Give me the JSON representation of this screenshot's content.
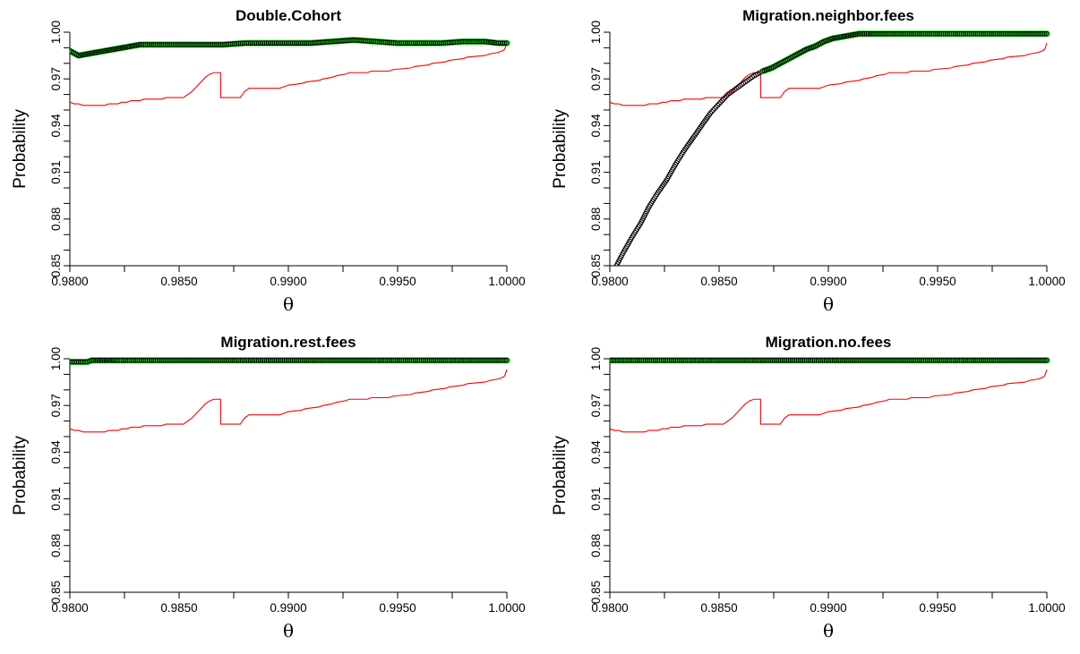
{
  "chart_data": [
    {
      "type": "line",
      "title": "Double.Cohort",
      "xlabel": "θ",
      "ylabel": "Probability",
      "xlim": [
        0.98,
        1.0
      ],
      "ylim": [
        0.85,
        1.0
      ],
      "xticks": [
        "0.9800",
        "0.9850",
        "0.9900",
        "0.9950",
        "1.0000"
      ],
      "yticks": [
        "0.85",
        "0.88",
        "0.91",
        "0.94",
        "0.97",
        "1.00"
      ],
      "series": [
        {
          "style": "red-line",
          "color": "#ff0000",
          "x": [
            0.98,
            0.9802,
            0.9804,
            0.9806,
            0.9816,
            0.9818,
            0.9822,
            0.9824,
            0.9826,
            0.9828,
            0.9832,
            0.9834,
            0.9842,
            0.9844,
            0.9852,
            0.9854,
            0.9856,
            0.9858,
            0.986,
            0.9862,
            0.9864,
            0.9866,
            0.9869,
            0.9869,
            0.9871,
            0.9871,
            0.9878,
            0.988,
            0.9882,
            0.9896,
            0.9898,
            0.99,
            0.9906,
            0.9908,
            0.9914,
            0.9916,
            0.992,
            0.9922,
            0.9926,
            0.9928,
            0.9936,
            0.9938,
            0.9946,
            0.9948,
            0.9956,
            0.9958,
            0.9964,
            0.9966,
            0.9972,
            0.9974,
            0.998,
            0.9982,
            0.999,
            0.9992,
            0.9996,
            0.9998,
            0.9999,
            1.0
          ],
          "y": [
            0.955,
            0.954,
            0.954,
            0.953,
            0.953,
            0.954,
            0.954,
            0.955,
            0.955,
            0.956,
            0.956,
            0.957,
            0.957,
            0.958,
            0.958,
            0.96,
            0.962,
            0.965,
            0.968,
            0.971,
            0.973,
            0.974,
            0.974,
            0.958,
            0.958,
            0.958,
            0.958,
            0.962,
            0.964,
            0.964,
            0.965,
            0.966,
            0.967,
            0.968,
            0.969,
            0.97,
            0.971,
            0.972,
            0.973,
            0.974,
            0.974,
            0.975,
            0.975,
            0.976,
            0.977,
            0.978,
            0.979,
            0.98,
            0.981,
            0.982,
            0.983,
            0.984,
            0.985,
            0.986,
            0.987,
            0.988,
            0.989,
            0.993
          ]
        },
        {
          "style": "black-circles-green-fill",
          "color": "#000000",
          "highlight": "#22dd22",
          "x": [
            0.98,
            0.9804,
            0.9808,
            0.9812,
            0.9816,
            0.982,
            0.9824,
            0.9828,
            0.9832,
            0.984,
            0.985,
            0.986,
            0.987,
            0.988,
            0.989,
            0.99,
            0.991,
            0.992,
            0.993,
            0.994,
            0.995,
            0.996,
            0.997,
            0.998,
            0.999,
            0.9996,
            1.0
          ],
          "y": [
            0.988,
            0.985,
            0.986,
            0.987,
            0.988,
            0.989,
            0.99,
            0.991,
            0.992,
            0.992,
            0.992,
            0.992,
            0.992,
            0.993,
            0.993,
            0.993,
            0.993,
            0.994,
            0.995,
            0.994,
            0.993,
            0.993,
            0.993,
            0.994,
            0.994,
            0.993,
            0.993
          ]
        }
      ]
    },
    {
      "type": "line",
      "title": "Migration.neighbor.fees",
      "xlabel": "θ",
      "ylabel": "Probability",
      "xlim": [
        0.98,
        1.0
      ],
      "ylim": [
        0.85,
        1.0
      ],
      "xticks": [
        "0.9800",
        "0.9850",
        "0.9900",
        "0.9950",
        "1.0000"
      ],
      "yticks": [
        "0.85",
        "0.88",
        "0.91",
        "0.94",
        "0.97",
        "1.00"
      ],
      "series": [
        {
          "style": "red-line",
          "color": "#ff0000",
          "x": [
            0.98,
            0.9802,
            0.9804,
            0.9806,
            0.9816,
            0.9818,
            0.9822,
            0.9824,
            0.9826,
            0.9828,
            0.9832,
            0.9834,
            0.9842,
            0.9844,
            0.9852,
            0.9854,
            0.9856,
            0.9858,
            0.986,
            0.9862,
            0.9864,
            0.9866,
            0.9869,
            0.9869,
            0.9871,
            0.9871,
            0.9878,
            0.988,
            0.9882,
            0.9896,
            0.9898,
            0.99,
            0.9906,
            0.9908,
            0.9914,
            0.9916,
            0.992,
            0.9922,
            0.9926,
            0.9928,
            0.9936,
            0.9938,
            0.9946,
            0.9948,
            0.9956,
            0.9958,
            0.9964,
            0.9966,
            0.9972,
            0.9974,
            0.998,
            0.9982,
            0.999,
            0.9992,
            0.9996,
            0.9998,
            0.9999,
            1.0
          ],
          "y": [
            0.955,
            0.954,
            0.954,
            0.953,
            0.953,
            0.954,
            0.954,
            0.955,
            0.955,
            0.956,
            0.956,
            0.957,
            0.957,
            0.958,
            0.958,
            0.96,
            0.962,
            0.965,
            0.968,
            0.971,
            0.973,
            0.974,
            0.974,
            0.958,
            0.958,
            0.958,
            0.958,
            0.962,
            0.964,
            0.964,
            0.965,
            0.966,
            0.967,
            0.968,
            0.969,
            0.97,
            0.971,
            0.972,
            0.973,
            0.974,
            0.974,
            0.975,
            0.975,
            0.976,
            0.977,
            0.978,
            0.979,
            0.98,
            0.981,
            0.982,
            0.983,
            0.984,
            0.985,
            0.986,
            0.987,
            0.988,
            0.989,
            0.993
          ]
        },
        {
          "style": "black-circles",
          "color": "#000000",
          "x": [
            0.9803,
            0.9806,
            0.981,
            0.9814,
            0.9818,
            0.9822,
            0.9826,
            0.983,
            0.9834,
            0.9838,
            0.9842,
            0.9846,
            0.985,
            0.9854,
            0.9858,
            0.9862,
            0.9866,
            0.987
          ],
          "y": [
            0.85,
            0.858,
            0.868,
            0.877,
            0.888,
            0.897,
            0.905,
            0.915,
            0.924,
            0.932,
            0.94,
            0.948,
            0.954,
            0.96,
            0.964,
            0.968,
            0.972,
            0.975
          ]
        },
        {
          "style": "black-circles-green-fill",
          "color": "#000000",
          "highlight": "#22dd22",
          "x": [
            0.987,
            0.9874,
            0.9878,
            0.9882,
            0.9886,
            0.989,
            0.9894,
            0.9898,
            0.9902,
            0.9906,
            0.991,
            0.9914,
            0.992,
            0.993,
            0.994,
            0.995,
            0.996,
            0.997,
            0.998,
            0.999,
            1.0
          ],
          "y": [
            0.975,
            0.977,
            0.98,
            0.983,
            0.986,
            0.989,
            0.991,
            0.994,
            0.996,
            0.997,
            0.998,
            0.999,
            0.999,
            0.999,
            0.999,
            0.999,
            0.999,
            0.999,
            0.999,
            0.999,
            0.999
          ]
        }
      ]
    },
    {
      "type": "line",
      "title": "Migration.rest.fees",
      "xlabel": "θ",
      "ylabel": "Probability",
      "xlim": [
        0.98,
        1.0
      ],
      "ylim": [
        0.85,
        1.0
      ],
      "xticks": [
        "0.9800",
        "0.9850",
        "0.9900",
        "0.9950",
        "1.0000"
      ],
      "yticks": [
        "0.85",
        "0.88",
        "0.91",
        "0.94",
        "0.97",
        "1.00"
      ],
      "series": [
        {
          "style": "red-line",
          "color": "#ff0000",
          "x": [
            0.98,
            0.9802,
            0.9804,
            0.9806,
            0.9816,
            0.9818,
            0.9822,
            0.9824,
            0.9826,
            0.9828,
            0.9832,
            0.9834,
            0.9842,
            0.9844,
            0.9852,
            0.9854,
            0.9856,
            0.9858,
            0.986,
            0.9862,
            0.9864,
            0.9866,
            0.9869,
            0.9869,
            0.9871,
            0.9871,
            0.9878,
            0.988,
            0.9882,
            0.9896,
            0.9898,
            0.99,
            0.9906,
            0.9908,
            0.9914,
            0.9916,
            0.992,
            0.9922,
            0.9926,
            0.9928,
            0.9936,
            0.9938,
            0.9946,
            0.9948,
            0.9956,
            0.9958,
            0.9964,
            0.9966,
            0.9972,
            0.9974,
            0.998,
            0.9982,
            0.999,
            0.9992,
            0.9996,
            0.9998,
            0.9999,
            1.0
          ],
          "y": [
            0.955,
            0.954,
            0.954,
            0.953,
            0.953,
            0.954,
            0.954,
            0.955,
            0.955,
            0.956,
            0.956,
            0.957,
            0.957,
            0.958,
            0.958,
            0.96,
            0.962,
            0.965,
            0.968,
            0.971,
            0.973,
            0.974,
            0.974,
            0.958,
            0.958,
            0.958,
            0.958,
            0.962,
            0.964,
            0.964,
            0.965,
            0.966,
            0.967,
            0.968,
            0.969,
            0.97,
            0.971,
            0.972,
            0.973,
            0.974,
            0.974,
            0.975,
            0.975,
            0.976,
            0.977,
            0.978,
            0.979,
            0.98,
            0.981,
            0.982,
            0.983,
            0.984,
            0.985,
            0.986,
            0.987,
            0.988,
            0.989,
            0.993
          ]
        },
        {
          "style": "black-circles-green-fill",
          "color": "#000000",
          "highlight": "#22dd22",
          "x": [
            0.98,
            0.9804,
            0.9808,
            0.981,
            0.9815,
            0.982,
            0.983,
            0.984,
            0.985,
            0.986,
            0.987,
            0.988,
            0.989,
            0.99,
            0.991,
            0.992,
            0.993,
            0.994,
            0.995,
            0.996,
            0.997,
            0.998,
            0.999,
            1.0
          ],
          "y": [
            0.998,
            0.998,
            0.998,
            0.999,
            0.999,
            0.999,
            0.999,
            0.999,
            0.999,
            0.999,
            0.999,
            0.999,
            0.999,
            0.999,
            0.999,
            0.999,
            0.999,
            0.999,
            0.999,
            0.999,
            0.999,
            0.999,
            0.999,
            0.999
          ]
        }
      ]
    },
    {
      "type": "line",
      "title": "Migration.no.fees",
      "xlabel": "θ",
      "ylabel": "Probability",
      "xlim": [
        0.98,
        1.0
      ],
      "ylim": [
        0.85,
        1.0
      ],
      "xticks": [
        "0.9800",
        "0.9850",
        "0.9900",
        "0.9950",
        "1.0000"
      ],
      "yticks": [
        "0.85",
        "0.88",
        "0.91",
        "0.94",
        "0.97",
        "1.00"
      ],
      "series": [
        {
          "style": "red-line",
          "color": "#ff0000",
          "x": [
            0.98,
            0.9802,
            0.9804,
            0.9806,
            0.9816,
            0.9818,
            0.9822,
            0.9824,
            0.9826,
            0.9828,
            0.9832,
            0.9834,
            0.9842,
            0.9844,
            0.9852,
            0.9854,
            0.9856,
            0.9858,
            0.986,
            0.9862,
            0.9864,
            0.9866,
            0.9869,
            0.9869,
            0.9871,
            0.9871,
            0.9878,
            0.988,
            0.9882,
            0.9896,
            0.9898,
            0.99,
            0.9906,
            0.9908,
            0.9914,
            0.9916,
            0.992,
            0.9922,
            0.9926,
            0.9928,
            0.9936,
            0.9938,
            0.9946,
            0.9948,
            0.9956,
            0.9958,
            0.9964,
            0.9966,
            0.9972,
            0.9974,
            0.998,
            0.9982,
            0.999,
            0.9992,
            0.9996,
            0.9998,
            0.9999,
            1.0
          ],
          "y": [
            0.955,
            0.954,
            0.954,
            0.953,
            0.953,
            0.954,
            0.954,
            0.955,
            0.955,
            0.956,
            0.956,
            0.957,
            0.957,
            0.958,
            0.958,
            0.96,
            0.962,
            0.965,
            0.968,
            0.971,
            0.973,
            0.974,
            0.974,
            0.958,
            0.958,
            0.958,
            0.958,
            0.962,
            0.964,
            0.964,
            0.965,
            0.966,
            0.967,
            0.968,
            0.969,
            0.97,
            0.971,
            0.972,
            0.973,
            0.974,
            0.974,
            0.975,
            0.975,
            0.976,
            0.977,
            0.978,
            0.979,
            0.98,
            0.981,
            0.982,
            0.983,
            0.984,
            0.985,
            0.986,
            0.987,
            0.988,
            0.989,
            0.993
          ]
        },
        {
          "style": "black-circles-green-fill",
          "color": "#000000",
          "highlight": "#22dd22",
          "x": [
            0.98,
            0.981,
            0.982,
            0.983,
            0.984,
            0.985,
            0.986,
            0.987,
            0.988,
            0.989,
            0.99,
            0.991,
            0.992,
            0.993,
            0.994,
            0.995,
            0.996,
            0.997,
            0.998,
            0.999,
            1.0
          ],
          "y": [
            0.999,
            0.999,
            0.999,
            0.999,
            0.999,
            0.999,
            0.999,
            0.999,
            0.999,
            0.999,
            0.999,
            0.999,
            0.999,
            0.999,
            0.999,
            0.999,
            0.999,
            0.999,
            0.999,
            0.999,
            0.999
          ]
        }
      ]
    }
  ]
}
